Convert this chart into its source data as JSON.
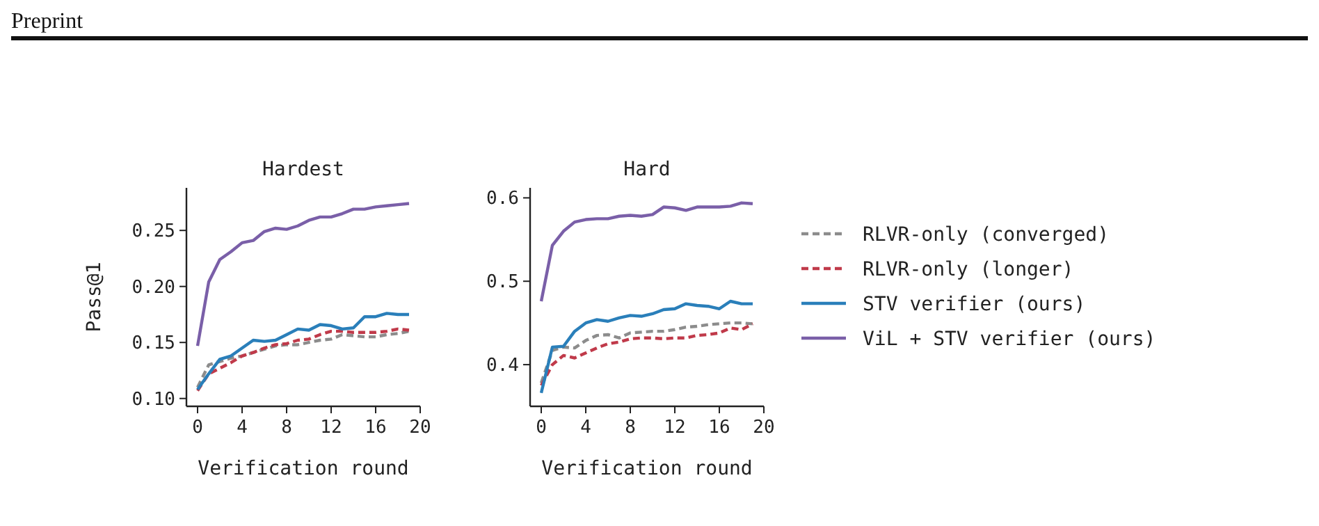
{
  "chart_data": [
    {
      "type": "line",
      "title": "Hardest",
      "xlabel": "Verification round",
      "ylabel": "Pass@1",
      "annotations": [
        "Preprint"
      ],
      "legend": false,
      "x": [
        0,
        1,
        2,
        3,
        4,
        5,
        6,
        7,
        8,
        9,
        10,
        11,
        12,
        13,
        14,
        15,
        16,
        17,
        18,
        19
      ],
      "xlim": [
        -1,
        20
      ],
      "xticks": [
        0,
        4,
        8,
        12,
        16,
        20
      ],
      "ylim": [
        0.093,
        0.288
      ],
      "yticks": [
        {
          "value": 0.1,
          "label": "0.10"
        },
        {
          "value": 0.15,
          "label": "0.15"
        },
        {
          "value": 0.2,
          "label": "0.20"
        },
        {
          "value": 0.25,
          "label": "0.25"
        }
      ],
      "series": [
        {
          "color": "#8c8c8c",
          "line_style": "dashed",
          "values": [
            0.11,
            0.13,
            0.133,
            0.136,
            0.138,
            0.141,
            0.144,
            0.147,
            0.148,
            0.148,
            0.15,
            0.152,
            0.153,
            0.157,
            0.156,
            0.155,
            0.155,
            0.157,
            0.158,
            0.16
          ]
        },
        {
          "color": "#c03a4a",
          "line_style": "dashed",
          "values": [
            0.107,
            0.122,
            0.127,
            0.132,
            0.138,
            0.141,
            0.145,
            0.148,
            0.149,
            0.152,
            0.153,
            0.157,
            0.16,
            0.16,
            0.159,
            0.159,
            0.159,
            0.16,
            0.162,
            0.161
          ]
        },
        {
          "color": "#2a7fba",
          "line_style": "solid",
          "values": [
            0.108,
            0.122,
            0.135,
            0.138,
            0.145,
            0.152,
            0.151,
            0.152,
            0.157,
            0.162,
            0.161,
            0.166,
            0.165,
            0.162,
            0.163,
            0.173,
            0.173,
            0.176,
            0.175,
            0.175
          ]
        },
        {
          "color": "#7a5fa8",
          "line_style": "solid",
          "values": [
            0.147,
            0.204,
            0.224,
            0.231,
            0.239,
            0.241,
            0.249,
            0.252,
            0.251,
            0.254,
            0.259,
            0.262,
            0.262,
            0.265,
            0.269,
            0.269,
            0.271,
            0.272,
            0.273,
            0.274
          ]
        }
      ]
    },
    {
      "type": "line",
      "title": "Hard",
      "xlabel": "Verification round",
      "legend": "right",
      "x": [
        0,
        1,
        2,
        3,
        4,
        5,
        6,
        7,
        8,
        9,
        10,
        11,
        12,
        13,
        14,
        15,
        16,
        17,
        18,
        19
      ],
      "xlim": [
        -1,
        20
      ],
      "xticks": [
        0,
        4,
        8,
        12,
        16,
        20
      ],
      "ylim": [
        0.35,
        0.612
      ],
      "yticks": [
        0.4,
        0.5,
        0.6
      ],
      "series": [
        {
          "name": "RLVR-only (converged)",
          "color": "#8c8c8c",
          "line_style": "dashed",
          "values": [
            0.378,
            0.417,
            0.421,
            0.42,
            0.429,
            0.435,
            0.436,
            0.432,
            0.438,
            0.439,
            0.44,
            0.44,
            0.442,
            0.445,
            0.446,
            0.448,
            0.449,
            0.45,
            0.45,
            0.449
          ]
        },
        {
          "name": "RLVR-only (longer)",
          "color": "#c03a4a",
          "line_style": "dashed",
          "values": [
            0.375,
            0.4,
            0.411,
            0.408,
            0.414,
            0.42,
            0.425,
            0.427,
            0.431,
            0.432,
            0.432,
            0.431,
            0.432,
            0.432,
            0.435,
            0.436,
            0.438,
            0.444,
            0.442,
            0.449
          ]
        },
        {
          "name": "STV verifier (ours)",
          "color": "#2a7fba",
          "line_style": "solid",
          "values": [
            0.366,
            0.421,
            0.422,
            0.44,
            0.45,
            0.454,
            0.452,
            0.456,
            0.459,
            0.458,
            0.461,
            0.466,
            0.467,
            0.473,
            0.471,
            0.47,
            0.467,
            0.476,
            0.473,
            0.473
          ]
        },
        {
          "name": "ViL + STV verifier (ours)",
          "color": "#7a5fa8",
          "line_style": "solid",
          "values": [
            0.476,
            0.543,
            0.56,
            0.571,
            0.574,
            0.575,
            0.575,
            0.578,
            0.579,
            0.578,
            0.58,
            0.589,
            0.588,
            0.585,
            0.589,
            0.589,
            0.589,
            0.59,
            0.594,
            0.593
          ]
        }
      ]
    }
  ]
}
